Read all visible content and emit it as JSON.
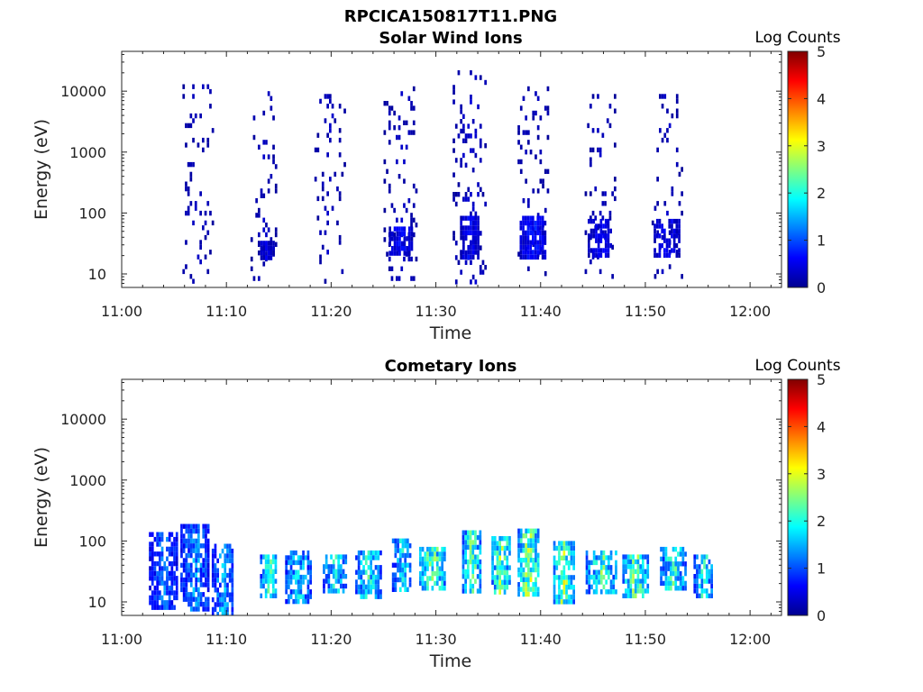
{
  "figure_title": "RPCICA150817T11.PNG",
  "chart_data": [
    {
      "type": "heatmap",
      "title": "Solar Wind Ions",
      "xlabel": "Time",
      "ylabel": "Energy (eV)",
      "x_ticks": [
        "11:00",
        "11:10",
        "11:20",
        "11:30",
        "11:40",
        "11:50",
        "12:00"
      ],
      "x_range_minutes": [
        0,
        63
      ],
      "y_scale": "log",
      "y_ticks": [
        10,
        100,
        1000,
        10000
      ],
      "y_tick_labels": [
        "10",
        "100",
        "1000",
        "10000"
      ],
      "y_range": [
        6,
        45000
      ],
      "colorbar": {
        "label": "Log Counts",
        "ticks": [
          "0",
          "1",
          "2",
          "3",
          "4",
          "5"
        ],
        "range": [
          0,
          5
        ],
        "colormap": "jet"
      },
      "scan_centers_minutes": [
        7.2,
        13.4,
        19.6,
        26.2,
        33.0,
        39.3,
        45.6,
        51.9
      ],
      "features": [
        {
          "t0": 5.8,
          "t1": 8.8,
          "e0": 8,
          "e1": 13000,
          "level": 0.3,
          "density": 0.12
        },
        {
          "t0": 12.3,
          "t1": 14.8,
          "e0": 8,
          "e1": 10000,
          "level": 0.3,
          "density": 0.12
        },
        {
          "t0": 18.4,
          "t1": 21.2,
          "e0": 8,
          "e1": 9000,
          "level": 0.3,
          "density": 0.12
        },
        {
          "t0": 25.0,
          "t1": 28.1,
          "e0": 8,
          "e1": 12000,
          "level": 0.3,
          "density": 0.13
        },
        {
          "t0": 31.6,
          "t1": 34.8,
          "e0": 8,
          "e1": 22000,
          "level": 0.35,
          "density": 0.14
        },
        {
          "t0": 37.8,
          "t1": 40.7,
          "e0": 8,
          "e1": 12000,
          "level": 0.3,
          "density": 0.12
        },
        {
          "t0": 44.2,
          "t1": 47.1,
          "e0": 8,
          "e1": 9000,
          "level": 0.3,
          "density": 0.12
        },
        {
          "t0": 50.6,
          "t1": 53.5,
          "e0": 8,
          "e1": 9000,
          "level": 0.3,
          "density": 0.12
        },
        {
          "t0": 13.0,
          "t1": 14.5,
          "e0": 18,
          "e1": 35,
          "level": 0.45,
          "density": 0.8
        },
        {
          "t0": 25.5,
          "t1": 27.6,
          "e0": 20,
          "e1": 60,
          "level": 0.6,
          "density": 0.8
        },
        {
          "t0": 32.3,
          "t1": 34.0,
          "e0": 20,
          "e1": 90,
          "level": 0.6,
          "density": 0.85
        },
        {
          "t0": 38.0,
          "t1": 40.4,
          "e0": 20,
          "e1": 90,
          "level": 0.7,
          "density": 0.85
        },
        {
          "t0": 44.5,
          "t1": 46.8,
          "e0": 20,
          "e1": 80,
          "level": 0.55,
          "density": 0.7
        },
        {
          "t0": 50.8,
          "t1": 53.2,
          "e0": 20,
          "e1": 80,
          "level": 0.55,
          "density": 0.7
        }
      ]
    },
    {
      "type": "heatmap",
      "title": "Cometary Ions",
      "xlabel": "Time",
      "ylabel": "Energy (eV)",
      "x_ticks": [
        "11:00",
        "11:10",
        "11:20",
        "11:30",
        "11:40",
        "11:50",
        "12:00"
      ],
      "x_range_minutes": [
        0,
        63
      ],
      "y_scale": "log",
      "y_ticks": [
        10,
        100,
        1000,
        10000
      ],
      "y_tick_labels": [
        "10",
        "100",
        "1000",
        "10000"
      ],
      "y_range": [
        6,
        45000
      ],
      "colorbar": {
        "label": "Log Counts",
        "ticks": [
          "0",
          "1",
          "2",
          "3",
          "4",
          "5"
        ],
        "range": [
          0,
          5
        ],
        "colormap": "jet"
      },
      "features": [
        {
          "t0": 2.6,
          "t1": 5.2,
          "e0": 8,
          "e1": 140,
          "level": 1.1,
          "density": 0.75
        },
        {
          "t0": 5.6,
          "t1": 8.2,
          "e0": 8,
          "e1": 190,
          "level": 1.3,
          "density": 0.75
        },
        {
          "t0": 8.6,
          "t1": 10.6,
          "e0": 6,
          "e1": 90,
          "level": 1.4,
          "density": 0.7
        },
        {
          "t0": 13.2,
          "t1": 14.8,
          "e0": 12,
          "e1": 60,
          "level": 2.0,
          "density": 0.75
        },
        {
          "t0": 15.6,
          "t1": 18.0,
          "e0": 10,
          "e1": 70,
          "level": 1.6,
          "density": 0.75
        },
        {
          "t0": 19.2,
          "t1": 21.3,
          "e0": 14,
          "e1": 60,
          "level": 1.8,
          "density": 0.75
        },
        {
          "t0": 22.3,
          "t1": 24.8,
          "e0": 12,
          "e1": 70,
          "level": 1.9,
          "density": 0.75
        },
        {
          "t0": 25.8,
          "t1": 27.6,
          "e0": 15,
          "e1": 110,
          "level": 1.7,
          "density": 0.7
        },
        {
          "t0": 28.4,
          "t1": 30.8,
          "e0": 18,
          "e1": 80,
          "level": 2.3,
          "density": 0.8
        },
        {
          "t0": 32.5,
          "t1": 34.2,
          "e0": 14,
          "e1": 150,
          "level": 2.2,
          "density": 0.8
        },
        {
          "t0": 35.3,
          "t1": 37.0,
          "e0": 15,
          "e1": 120,
          "level": 2.4,
          "density": 0.8
        },
        {
          "t0": 37.8,
          "t1": 39.8,
          "e0": 14,
          "e1": 160,
          "level": 2.5,
          "density": 0.8
        },
        {
          "t0": 41.2,
          "t1": 43.1,
          "e0": 10,
          "e1": 100,
          "level": 2.4,
          "density": 0.8
        },
        {
          "t0": 44.3,
          "t1": 47.3,
          "e0": 15,
          "e1": 70,
          "level": 2.1,
          "density": 0.75
        },
        {
          "t0": 47.8,
          "t1": 50.2,
          "e0": 12,
          "e1": 60,
          "level": 2.3,
          "density": 0.75
        },
        {
          "t0": 51.4,
          "t1": 53.8,
          "e0": 18,
          "e1": 80,
          "level": 2.0,
          "density": 0.75
        },
        {
          "t0": 54.6,
          "t1": 56.4,
          "e0": 12,
          "e1": 60,
          "level": 1.9,
          "density": 0.75
        }
      ]
    }
  ]
}
